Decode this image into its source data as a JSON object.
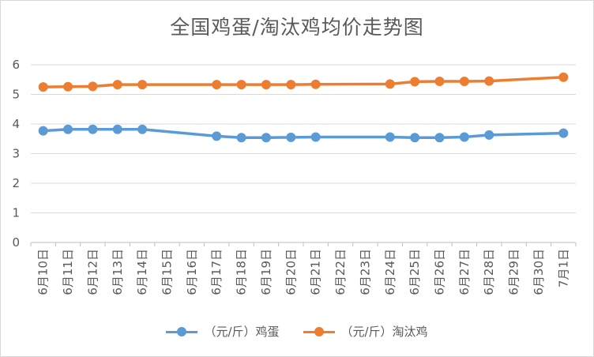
{
  "chart_data": {
    "type": "line",
    "title": "全国鸡蛋/淘汰鸡均价走势图",
    "categories": [
      "6月10日",
      "6月11日",
      "6月12日",
      "6月13日",
      "6月14日",
      "6月15日",
      "6月16日",
      "6月17日",
      "6月18日",
      "6月19日",
      "6月20日",
      "6月21日",
      "6月22日",
      "6月23日",
      "6月24日",
      "6月25日",
      "6月26日",
      "6月27日",
      "6月28日",
      "6月29日",
      "6月30日",
      "7月1日"
    ],
    "ylim": [
      0,
      6
    ],
    "yticks": [
      0,
      1,
      2,
      3,
      4,
      5,
      6
    ],
    "grid": true,
    "legend_position": "bottom",
    "series": [
      {
        "name": "（元/斤）鸡蛋",
        "color": "#5b9bd5",
        "values": [
          3.77,
          3.82,
          3.82,
          3.82,
          3.82,
          null,
          null,
          3.59,
          3.54,
          3.54,
          3.55,
          3.56,
          null,
          null,
          3.56,
          3.54,
          3.54,
          3.56,
          3.63,
          null,
          null,
          3.69
        ]
      },
      {
        "name": "（元/斤）淘汰鸡",
        "color": "#ed7d31",
        "values": [
          5.25,
          5.26,
          5.27,
          5.33,
          5.33,
          null,
          null,
          5.33,
          5.33,
          5.33,
          5.33,
          5.34,
          null,
          null,
          5.35,
          5.43,
          5.44,
          5.44,
          5.45,
          null,
          null,
          5.58
        ]
      }
    ]
  }
}
